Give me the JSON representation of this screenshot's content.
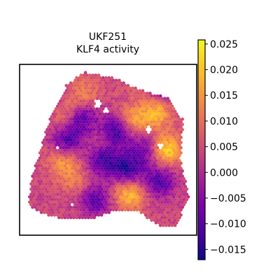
{
  "chart_data": {
    "type": "heatmap",
    "title_line1": "UKF251",
    "title_line2": "KLF4 activity",
    "xlabel": "",
    "ylabel": "",
    "colorbar": {
      "colormap": "plasma",
      "range": [
        -0.017,
        0.0258
      ],
      "ticks": [
        -0.015,
        -0.01,
        -0.005,
        0.0,
        0.005,
        0.01,
        0.015,
        0.02,
        0.025
      ],
      "tick_labels": [
        "−0.015",
        "−0.010",
        "−0.005",
        "0.000",
        "0.005",
        "0.010",
        "0.015",
        "0.020",
        "0.025"
      ]
    },
    "grid": false,
    "axes_ticks": false,
    "spot_map_note": "hexagonal spatial spots, values shown by color",
    "hotspots": [
      {
        "x": 0.63,
        "y": 0.78,
        "v": 0.02
      },
      {
        "x": 0.86,
        "y": 0.5,
        "v": 0.022
      },
      {
        "x": 0.8,
        "y": 0.26,
        "v": 0.018
      },
      {
        "x": 0.64,
        "y": 0.32,
        "v": 0.019
      },
      {
        "x": 0.22,
        "y": 0.58,
        "v": 0.015
      },
      {
        "x": 0.2,
        "y": 0.25,
        "v": 0.016
      },
      {
        "x": 0.35,
        "y": 0.13,
        "v": 0.012
      },
      {
        "x": 0.3,
        "y": 0.7,
        "v": 0.01
      },
      {
        "x": 0.72,
        "y": 0.1,
        "v": 0.008
      },
      {
        "x": 0.42,
        "y": 0.44,
        "v": 0.006
      }
    ],
    "coldspots": [
      {
        "x": 0.56,
        "y": 0.37,
        "v": -0.016
      },
      {
        "x": 0.47,
        "y": 0.57,
        "v": -0.012
      },
      {
        "x": 0.84,
        "y": 0.08,
        "v": -0.014
      },
      {
        "x": 0.62,
        "y": 0.63,
        "v": -0.013
      },
      {
        "x": 0.25,
        "y": 0.44,
        "v": -0.011
      },
      {
        "x": 0.42,
        "y": 0.82,
        "v": -0.01
      },
      {
        "x": 0.82,
        "y": 0.7,
        "v": -0.011
      },
      {
        "x": 0.12,
        "y": 0.2,
        "v": -0.012
      },
      {
        "x": 0.34,
        "y": 0.3,
        "v": -0.009
      },
      {
        "x": 0.72,
        "y": 0.5,
        "v": -0.008
      }
    ]
  }
}
